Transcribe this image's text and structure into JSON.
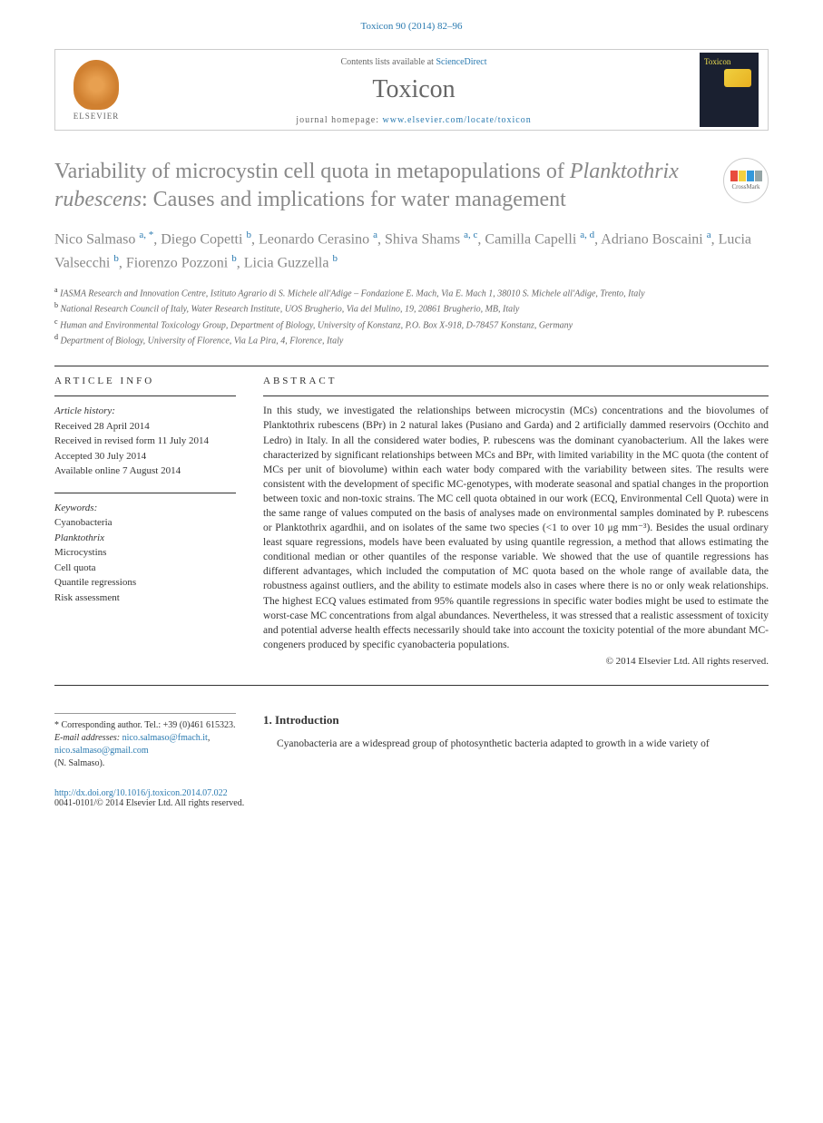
{
  "header": {
    "citation": "Toxicon 90 (2014) 82–96",
    "contents_label": "Contents lists available at ",
    "sciencedirect": "ScienceDirect",
    "journal": "Toxicon",
    "homepage_label": "journal homepage: ",
    "homepage_url": "www.elsevier.com/locate/toxicon",
    "elsevier_label": "ELSEVIER",
    "cover_journal": "Toxicon"
  },
  "crossmark": {
    "label": "CrossMark",
    "colors": [
      "#e84c3d",
      "#f4d03f",
      "#3498db",
      "#95a5a6"
    ]
  },
  "title": {
    "part1": "Variability of microcystin cell quota in metapopulations of ",
    "italic": "Planktothrix rubescens",
    "part2": ": Causes and implications for water management"
  },
  "authors": [
    {
      "name": "Nico Salmaso",
      "affil": "a, *"
    },
    {
      "name": "Diego Copetti",
      "affil": "b"
    },
    {
      "name": "Leonardo Cerasino",
      "affil": "a"
    },
    {
      "name": "Shiva Shams",
      "affil": "a, c"
    },
    {
      "name": "Camilla Capelli",
      "affil": "a, d"
    },
    {
      "name": "Adriano Boscaini",
      "affil": "a"
    },
    {
      "name": "Lucia Valsecchi",
      "affil": "b"
    },
    {
      "name": "Fiorenzo Pozzoni",
      "affil": "b"
    },
    {
      "name": "Licia Guzzella",
      "affil": "b"
    }
  ],
  "affiliations": [
    {
      "sup": "a",
      "text": "IASMA Research and Innovation Centre, Istituto Agrario di S. Michele all'Adige – Fondazione E. Mach, Via E. Mach 1, 38010 S. Michele all'Adige, Trento, Italy"
    },
    {
      "sup": "b",
      "text": "National Research Council of Italy, Water Research Institute, UOS Brugherio, Via del Mulino, 19, 20861 Brugherio, MB, Italy"
    },
    {
      "sup": "c",
      "text": "Human and Environmental Toxicology Group, Department of Biology, University of Konstanz, P.O. Box X-918, D-78457 Konstanz, Germany"
    },
    {
      "sup": "d",
      "text": "Department of Biology, University of Florence, Via La Pira, 4, Florence, Italy"
    }
  ],
  "article_info": {
    "header": "ARTICLE INFO",
    "history_label": "Article history:",
    "received": "Received 28 April 2014",
    "revised": "Received in revised form 11 July 2014",
    "accepted": "Accepted 30 July 2014",
    "online": "Available online 7 August 2014",
    "keywords_label": "Keywords:",
    "keywords": [
      "Cyanobacteria",
      "Planktothrix",
      "Microcystins",
      "Cell quota",
      "Quantile regressions",
      "Risk assessment"
    ]
  },
  "abstract": {
    "header": "ABSTRACT",
    "text": "In this study, we investigated the relationships between microcystin (MCs) concentrations and the biovolumes of Planktothrix rubescens (BPr) in 2 natural lakes (Pusiano and Garda) and 2 artificially dammed reservoirs (Occhito and Ledro) in Italy. In all the considered water bodies, P. rubescens was the dominant cyanobacterium. All the lakes were characterized by significant relationships between MCs and BPr, with limited variability in the MC quota (the content of MCs per unit of biovolume) within each water body compared with the variability between sites. The results were consistent with the development of specific MC-genotypes, with moderate seasonal and spatial changes in the proportion between toxic and non-toxic strains. The MC cell quota obtained in our work (ECQ, Environmental Cell Quota) were in the same range of values computed on the basis of analyses made on environmental samples dominated by P. rubescens or Planktothrix agardhii, and on isolates of the same two species (<1 to over 10 μg mm⁻³). Besides the usual ordinary least square regressions, models have been evaluated by using quantile regression, a method that allows estimating the conditional median or other quantiles of the response variable. We showed that the use of quantile regressions has different advantages, which included the computation of MC quota based on the whole range of available data, the robustness against outliers, and the ability to estimate models also in cases where there is no or only weak relationships. The highest ECQ values estimated from 95% quantile regressions in specific water bodies might be used to estimate the worst-case MC concentrations from algal abundances. Nevertheless, it was stressed that a realistic assessment of toxicity and potential adverse health effects necessarily should take into account the toxicity potential of the more abundant MC-congeners produced by specific cyanobacteria populations.",
    "copyright": "© 2014 Elsevier Ltd. All rights reserved."
  },
  "corresponding": {
    "label": "* Corresponding author. Tel.: +39 (0)461 615323.",
    "email_label": "E-mail addresses: ",
    "email1": "nico.salmaso@fmach.it",
    "email2": "nico.salmaso@gmail.com",
    "name": "(N. Salmaso)."
  },
  "introduction": {
    "heading": "1. Introduction",
    "text": "Cyanobacteria are a widespread group of photosynthetic bacteria adapted to growth in a wide variety of"
  },
  "footer": {
    "doi": "http://dx.doi.org/10.1016/j.toxicon.2014.07.022",
    "issn_copyright": "0041-0101/© 2014 Elsevier Ltd. All rights reserved."
  },
  "colors": {
    "link_blue": "#2a7ab0",
    "title_gray": "#888888",
    "text_dark": "#333333",
    "border_gray": "#cccccc"
  }
}
